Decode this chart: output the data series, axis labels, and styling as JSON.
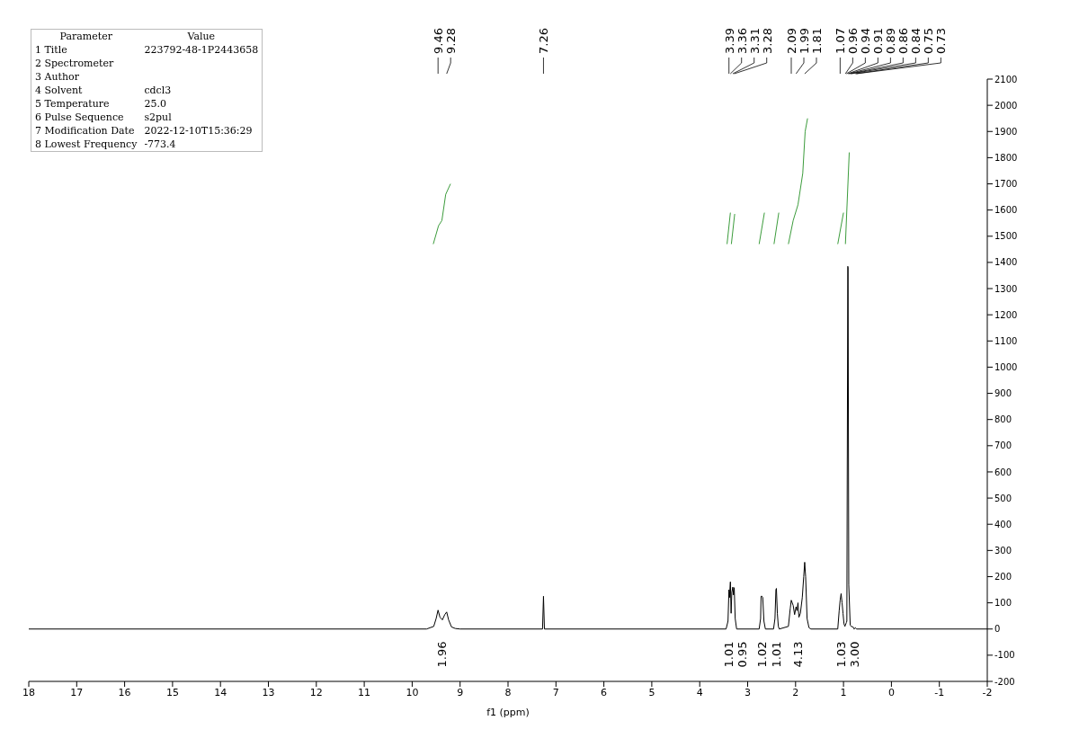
{
  "chart_data": {
    "type": "line",
    "xlabel": "f1 (ppm)",
    "xlim": [
      18,
      -2
    ],
    "xticks": [
      18,
      17,
      16,
      15,
      14,
      13,
      12,
      11,
      10,
      9,
      8,
      7,
      6,
      5,
      4,
      3,
      2,
      1,
      0,
      -1,
      -2
    ],
    "ylim": [
      -200,
      2100
    ],
    "yticks": [
      -200,
      -100,
      0,
      100,
      200,
      300,
      400,
      500,
      600,
      700,
      800,
      900,
      1000,
      1100,
      1200,
      1300,
      1400,
      1500,
      1600,
      1700,
      1800,
      1900,
      2000,
      2100
    ],
    "marker": "none",
    "line_style": "solid",
    "series": [
      {
        "color": "#000000",
        "x": [
          18,
          9.7,
          9.55,
          9.5,
          9.46,
          9.42,
          9.37,
          9.32,
          9.28,
          9.24,
          9.18,
          9.1,
          9.0,
          7.28,
          7.26,
          7.24,
          3.45,
          3.41,
          3.39,
          3.38,
          3.36,
          3.345,
          3.33,
          3.31,
          3.295,
          3.28,
          3.26,
          3.23,
          2.76,
          2.73,
          2.72,
          2.7,
          2.685,
          2.66,
          2.63,
          2.46,
          2.43,
          2.41,
          2.4,
          2.38,
          2.36,
          2.34,
          2.15,
          2.11,
          2.09,
          2.05,
          2.02,
          1.99,
          1.97,
          1.95,
          1.93,
          1.9,
          1.86,
          1.83,
          1.81,
          1.79,
          1.76,
          1.72,
          1.68,
          1.12,
          1.09,
          1.07,
          1.05,
          1.03,
          1.01,
          0.99,
          0.97,
          0.96,
          0.94,
          0.93,
          0.91,
          0.905,
          0.89,
          0.86,
          0.84,
          0.8,
          0.78,
          0.75,
          0.73,
          -2
        ],
        "values": [
          0,
          0,
          10,
          40,
          72,
          45,
          35,
          55,
          65,
          35,
          8,
          2,
          0,
          0,
          125,
          0,
          0,
          30,
          150,
          120,
          180,
          60,
          140,
          160,
          130,
          158,
          40,
          0,
          0,
          40,
          125,
          125,
          120,
          30,
          0,
          0,
          40,
          150,
          155,
          60,
          10,
          0,
          10,
          80,
          110,
          90,
          55,
          85,
          70,
          100,
          45,
          60,
          120,
          200,
          255,
          200,
          40,
          5,
          0,
          0,
          70,
          110,
          135,
          100,
          60,
          20,
          10,
          15,
          25,
          30,
          1385,
          1380,
          170,
          15,
          10,
          8,
          0,
          5,
          0,
          0
        ]
      },
      {
        "type": "line",
        "color": "#3c9c3c",
        "x": [
          9.56,
          9.45,
          9.38,
          9.3,
          9.2
        ],
        "values": [
          1470,
          1540,
          1560,
          1660,
          1700
        ]
      },
      {
        "type": "line",
        "color": "#3c9c3c",
        "x": [
          3.43,
          3.36
        ],
        "values": [
          1470,
          1590
        ]
      },
      {
        "type": "line",
        "color": "#3c9c3c",
        "x": [
          3.34,
          3.27
        ],
        "values": [
          1470,
          1585
        ]
      },
      {
        "type": "line",
        "color": "#3c9c3c",
        "x": [
          2.76,
          2.65
        ],
        "values": [
          1470,
          1590
        ]
      },
      {
        "type": "line",
        "color": "#3c9c3c",
        "x": [
          2.45,
          2.35
        ],
        "values": [
          1470,
          1590
        ]
      },
      {
        "type": "line",
        "color": "#3c9c3c",
        "x": [
          2.15,
          2.05,
          1.95,
          1.85,
          1.8,
          1.75
        ],
        "values": [
          1470,
          1560,
          1620,
          1740,
          1900,
          1950
        ]
      },
      {
        "type": "line",
        "color": "#3c9c3c",
        "x": [
          1.12,
          1.0
        ],
        "values": [
          1470,
          1590
        ]
      },
      {
        "type": "line",
        "color": "#3c9c3c",
        "x": [
          0.96,
          0.88
        ],
        "values": [
          1470,
          1820
        ]
      }
    ],
    "annotations": [
      "Parameter\tValue",
      "1 Title\t223792-48-1P2443658",
      "2 Spectrometer",
      "3 Author",
      "4 Solvent\tcdcl3",
      "5 Temperature\t25.0",
      "6 Pulse Sequence\ts2pul",
      "7 Modification Date\t2022-12-10T15:36:29",
      "8 Lowest Frequency\t-773.4",
      {
        "text": "9.46",
        "x": 9.46
      },
      {
        "text": "9.28",
        "x": 9.28
      },
      {
        "text": "7.26",
        "x": 7.26
      },
      {
        "text": "3.39",
        "x": 3.39
      },
      {
        "text": "3.36",
        "x": 3.36
      },
      {
        "text": "3.31",
        "x": 3.31
      },
      {
        "text": "3.28",
        "x": 3.28
      },
      {
        "text": "2.09",
        "x": 2.09
      },
      {
        "text": "1.99",
        "x": 1.99
      },
      {
        "text": "1.81",
        "x": 1.81
      },
      {
        "text": "1.07",
        "x": 1.07
      },
      {
        "text": "0.96",
        "x": 0.96
      },
      {
        "text": "0.94",
        "x": 0.94
      },
      {
        "text": "0.91",
        "x": 0.91
      },
      {
        "text": "0.89",
        "x": 0.89
      },
      {
        "text": "0.86",
        "x": 0.86
      },
      {
        "text": "0.84",
        "x": 0.84
      },
      {
        "text": "0.75",
        "x": 0.75
      },
      {
        "text": "0.73",
        "x": 0.73
      },
      "1.96",
      "1.01",
      "0.95",
      "1.02",
      "1.01",
      "4.13",
      "1.03",
      "3.00"
    ]
  }
}
